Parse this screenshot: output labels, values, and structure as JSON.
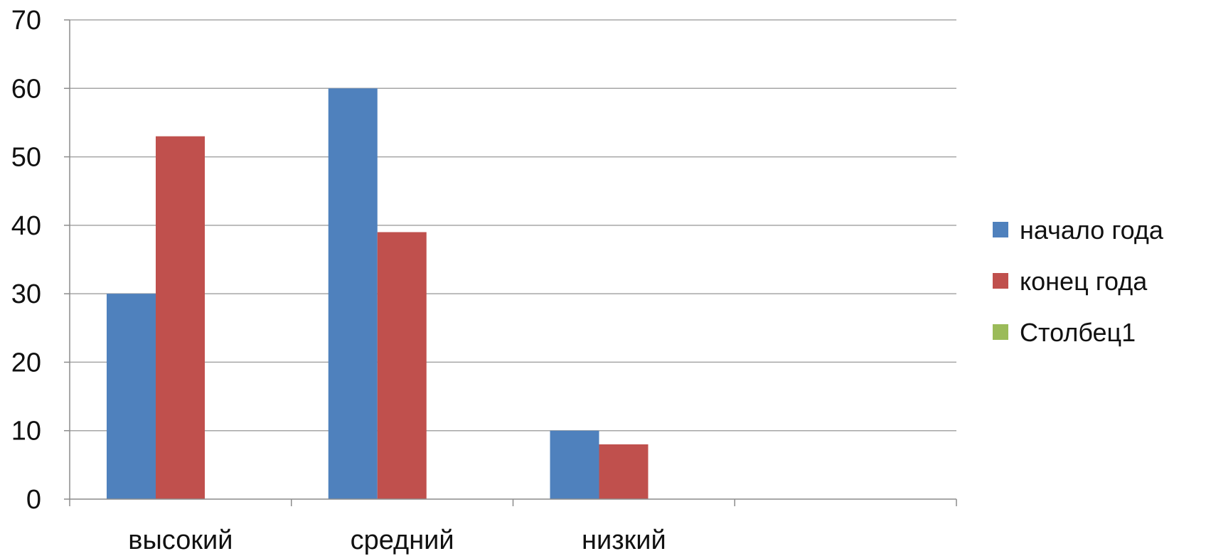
{
  "chart_data": {
    "type": "bar",
    "categories": [
      "высокий",
      "средний",
      "низкий",
      ""
    ],
    "series": [
      {
        "name": "начало года",
        "color": "#4F81BD",
        "values": [
          30,
          60,
          10,
          null
        ]
      },
      {
        "name": "конец года",
        "color": "#C0504D",
        "values": [
          53,
          39,
          8,
          null
        ]
      },
      {
        "name": "Столбец1",
        "color": "#9BBB59",
        "values": [
          null,
          null,
          null,
          null
        ]
      }
    ],
    "yticks": [
      "0",
      "10",
      "20",
      "30",
      "40",
      "50",
      "60",
      "70"
    ],
    "ylim": [
      0,
      70
    ],
    "grid": true,
    "legend_position": "right"
  }
}
